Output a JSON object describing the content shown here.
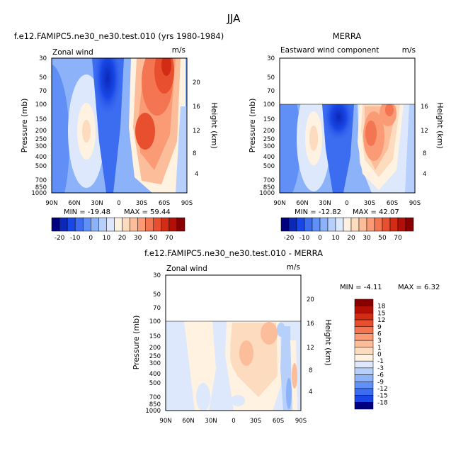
{
  "figure": {
    "title": "JJA"
  },
  "chart_data": [
    {
      "type": "heatmap",
      "title": "f.e12.FAMIPC5.ne30_ne30.test.010 (yrs 1980-1984)",
      "variable": "Zonal wind",
      "units": "m/s",
      "ylabel": "Pressure (mb)",
      "ylabel_right": "Height (km)",
      "x_ticks": [
        "90N",
        "60N",
        "30N",
        "0",
        "30S",
        "60S",
        "90S"
      ],
      "y_ticks": [
        "30",
        "50",
        "70",
        "100",
        "150",
        "200",
        "250",
        "300",
        "400",
        "500",
        "700",
        "850",
        "1000"
      ],
      "y_ticks_right": [
        "20",
        "16",
        "12",
        "8",
        "4"
      ],
      "ylim": [
        1000,
        30
      ],
      "log_pressure": true,
      "data_top_mb": 30,
      "min_label": "MIN = -19.48",
      "max_label": "MAX = 59.44",
      "colorbar": {
        "labels": [
          "-20",
          "-10",
          "0",
          "10",
          "20",
          "30",
          "50",
          "70"
        ],
        "colors": [
          "#00007f",
          "#0b28b9",
          "#1947e6",
          "#3c6cf0",
          "#6090f5",
          "#8cb2f9",
          "#b6cffb",
          "#dde8fd",
          "#fff2e0",
          "#fddbbe",
          "#fcbd9a",
          "#fa9b76",
          "#f47551",
          "#e84f2f",
          "#d22c14",
          "#b21007",
          "#8a0000"
        ]
      },
      "features": [
        {
          "kind": "jet",
          "sign": "positive",
          "lat": -45,
          "p": 200,
          "max": 59.44
        },
        {
          "kind": "jet",
          "sign": "positive",
          "lat": 40,
          "p": 200,
          "max": 20
        },
        {
          "kind": "easterly",
          "sign": "negative",
          "lat": 5,
          "p": 50,
          "min": -19.48
        }
      ]
    },
    {
      "type": "heatmap",
      "title": "MERRA",
      "variable": "Eastward wind component",
      "units": "m/s",
      "ylabel": "Pressure (mb)",
      "ylabel_right": "Height (km)",
      "x_ticks": [
        "90N",
        "60N",
        "30N",
        "0",
        "30S",
        "60S",
        "90S"
      ],
      "y_ticks": [
        "30",
        "50",
        "70",
        "100",
        "150",
        "200",
        "250",
        "300",
        "400",
        "500",
        "700",
        "850",
        "1000"
      ],
      "y_ticks_right": [
        "16",
        "12",
        "8",
        "4"
      ],
      "ylim": [
        1000,
        30
      ],
      "log_pressure": true,
      "data_top_mb": 100,
      "min_label": "MIN = -12.82",
      "max_label": "MAX = 42.07",
      "colorbar": {
        "labels": [
          "-20",
          "-10",
          "0",
          "10",
          "20",
          "30",
          "50",
          "70"
        ],
        "colors": [
          "#00007f",
          "#0b28b9",
          "#1947e6",
          "#3c6cf0",
          "#6090f5",
          "#8cb2f9",
          "#b6cffb",
          "#dde8fd",
          "#fff2e0",
          "#fddbbe",
          "#fcbd9a",
          "#fa9b76",
          "#f47551",
          "#e84f2f",
          "#d22c14",
          "#b21007",
          "#8a0000"
        ]
      },
      "features": [
        {
          "kind": "jet",
          "sign": "positive",
          "lat": -30,
          "p": 200,
          "max": 42.07
        },
        {
          "kind": "jet",
          "sign": "positive",
          "lat": 40,
          "p": 200,
          "max": 20
        },
        {
          "kind": "easterly",
          "sign": "negative",
          "lat": 5,
          "p": 100,
          "min": -12.82
        }
      ]
    },
    {
      "type": "heatmap",
      "title": "f.e12.FAMIPC5.ne30_ne30.test.010 - MERRA",
      "variable": "Zonal wind",
      "units": "m/s",
      "ylabel": "Pressure (mb)",
      "ylabel_right": "Height (km)",
      "x_ticks": [
        "90N",
        "60N",
        "30N",
        "0",
        "30S",
        "60S",
        "90S"
      ],
      "y_ticks": [
        "30",
        "50",
        "70",
        "100",
        "150",
        "200",
        "250",
        "300",
        "400",
        "500",
        "700",
        "850",
        "1000"
      ],
      "y_ticks_right": [
        "20",
        "16",
        "12",
        "8",
        "4"
      ],
      "ylim": [
        1000,
        30
      ],
      "log_pressure": true,
      "data_top_mb": 100,
      "min_label": "MIN = -4.11",
      "max_label": "MAX = 6.32",
      "colorbar": {
        "orientation": "vertical",
        "labels": [
          "18",
          "15",
          "12",
          "9",
          "6",
          "3",
          "1",
          "0",
          "-1",
          "-3",
          "-6",
          "-9",
          "-12",
          "-15",
          "-18"
        ],
        "colors": [
          "#8a0000",
          "#b21007",
          "#d22c14",
          "#e84f2f",
          "#f47551",
          "#fa9b76",
          "#fcbd9a",
          "#fddbbe",
          "#fff2e0",
          "#dde8fd",
          "#b6cffb",
          "#8cb2f9",
          "#6090f5",
          "#3c6cf0",
          "#1947e6",
          "#00007f"
        ]
      },
      "features": [
        {
          "kind": "diff",
          "sign": "positive",
          "lat": -35,
          "p": 200,
          "max": 6.32
        },
        {
          "kind": "diff",
          "sign": "negative",
          "lat": -75,
          "p": 300,
          "min": -4.11
        }
      ]
    }
  ]
}
